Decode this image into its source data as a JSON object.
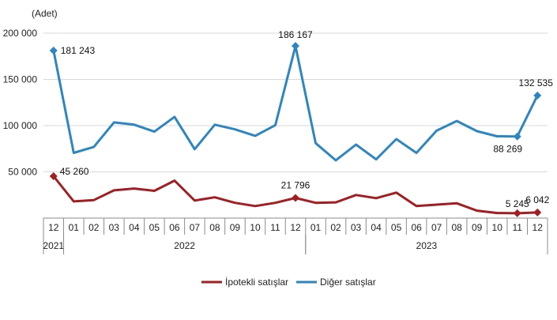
{
  "chart_data": {
    "type": "line",
    "ylabel": "(Adet)",
    "ylim": [
      0,
      200000
    ],
    "yticks": [
      {
        "value": 50000,
        "label": "50 000"
      },
      {
        "value": 100000,
        "label": "100 000"
      },
      {
        "value": 150000,
        "label": "150 000"
      },
      {
        "value": 200000,
        "label": "200 000"
      }
    ],
    "categories": [
      "12",
      "01",
      "02",
      "03",
      "04",
      "05",
      "06",
      "07",
      "08",
      "09",
      "10",
      "11",
      "12",
      "01",
      "02",
      "03",
      "04",
      "05",
      "06",
      "07",
      "08",
      "09",
      "10",
      "11",
      "12"
    ],
    "year_groups": [
      {
        "label": "2021",
        "start": 0,
        "end": 0
      },
      {
        "label": "2022",
        "start": 1,
        "end": 12
      },
      {
        "label": "2023",
        "start": 13,
        "end": 24
      }
    ],
    "series": [
      {
        "name": "İpotekli satışlar",
        "color": "#A21E23",
        "values": [
          45260,
          18000,
          19500,
          30000,
          32000,
          29500,
          40500,
          19000,
          22500,
          16500,
          13000,
          16500,
          21796,
          16500,
          17000,
          25000,
          21500,
          27500,
          13000,
          14500,
          16000,
          8000,
          5500,
          5245,
          6042
        ],
        "annotations": [
          {
            "index": 0,
            "label": "45 260"
          },
          {
            "index": 12,
            "label": "21 796"
          },
          {
            "index": 23,
            "label": "5 245"
          },
          {
            "index": 24,
            "label": "6 042"
          }
        ]
      },
      {
        "name": "Diğer satışlar",
        "color": "#2E86C1",
        "values": [
          181243,
          70500,
          77000,
          103500,
          101000,
          93500,
          109500,
          74500,
          101000,
          96000,
          89000,
          100500,
          186167,
          81000,
          62500,
          79500,
          63500,
          85500,
          70500,
          94500,
          105000,
          94000,
          88500,
          88269,
          132535
        ],
        "annotations": [
          {
            "index": 0,
            "label": "181 243"
          },
          {
            "index": 12,
            "label": "186 167"
          },
          {
            "index": 23,
            "label": "88 269"
          },
          {
            "index": 24,
            "label": "132 535"
          }
        ]
      }
    ],
    "legend": {
      "position": "bottom-center"
    }
  }
}
